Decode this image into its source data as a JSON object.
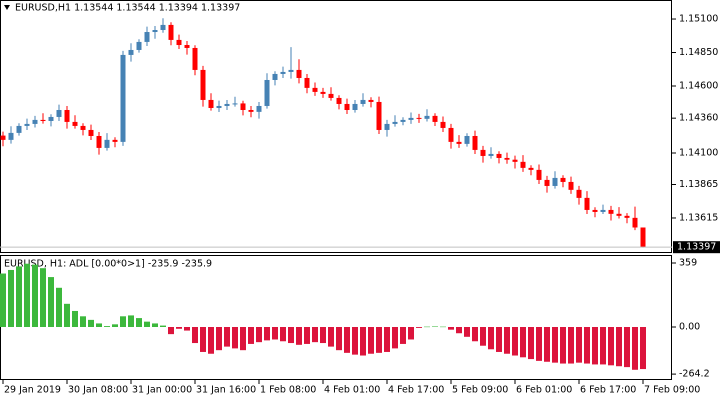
{
  "chart_data": [
    {
      "type": "candlestick",
      "title": "EURUSD,H1  1.13544 1.13544 1.13394 1.13397",
      "open": [
        1.1423,
        1.14198,
        1.1425,
        1.14302,
        1.14317,
        1.14347,
        1.14339,
        1.14369,
        1.14421,
        1.14332,
        1.14302,
        1.14272,
        1.14227,
        1.14138,
        1.14198,
        1.14183,
        1.14832,
        1.14869,
        1.14929,
        1.15003,
        1.15018,
        1.15056,
        1.14944,
        1.14906,
        1.14884,
        1.1472,
        1.14496,
        1.14436,
        1.14451,
        1.14466,
        1.1447,
        1.14421,
        1.14407,
        1.14451,
        1.14645,
        1.1469,
        1.14705,
        1.1472,
        1.1466,
        1.14586,
        1.14556,
        1.14541,
        1.14511,
        1.14466,
        1.14421,
        1.14466,
        1.14496,
        1.14481,
        1.14272,
        1.14317,
        1.14332,
        1.14347,
        1.14362,
        1.14355,
        1.14377,
        1.14332,
        1.14287,
        1.14183,
        1.14168,
        1.14227,
        1.14123,
        1.14078,
        1.14093,
        1.14063,
        1.1405,
        1.14034,
        1.13989,
        1.13974,
        1.13899,
        1.13854,
        1.13914,
        1.13884,
        1.13825,
        1.13765,
        1.13675,
        1.1366,
        1.13675,
        1.13646,
        1.13631,
        1.13616,
        1.13544
      ],
      "high": [
        1.1426,
        1.143,
        1.14322,
        1.14357,
        1.14377,
        1.14397,
        1.14389,
        1.14461,
        1.14451,
        1.14382,
        1.14322,
        1.14312,
        1.14257,
        1.14248,
        1.14218,
        1.14862,
        1.14919,
        1.14949,
        1.15043,
        1.15048,
        1.15106,
        1.15076,
        1.14984,
        1.14936,
        1.14904,
        1.1475,
        1.14546,
        1.14491,
        1.14496,
        1.1452,
        1.1449,
        1.14451,
        1.14481,
        1.14695,
        1.1471,
        1.14745,
        1.1489,
        1.148,
        1.1469,
        1.14626,
        1.14586,
        1.14591,
        1.14531,
        1.14506,
        1.14496,
        1.14546,
        1.14516,
        1.14521,
        1.14347,
        1.14382,
        1.14367,
        1.14402,
        1.14392,
        1.14427,
        1.14397,
        1.14372,
        1.14317,
        1.14233,
        1.14247,
        1.14267,
        1.14153,
        1.14143,
        1.14113,
        1.14103,
        1.1408,
        1.14084,
        1.14009,
        1.14014,
        1.13929,
        1.13964,
        1.13934,
        1.13924,
        1.13855,
        1.13815,
        1.13695,
        1.13715,
        1.13705,
        1.13696,
        1.13651,
        1.137,
        1.13544
      ],
      "low": [
        1.1415,
        1.1417,
        1.1423,
        1.14272,
        1.1429,
        1.14319,
        1.14299,
        1.14339,
        1.14282,
        1.14282,
        1.14232,
        1.14197,
        1.14088,
        1.14118,
        1.14143,
        1.14153,
        1.14782,
        1.14849,
        1.14899,
        1.14953,
        1.14998,
        1.14904,
        1.14876,
        1.14834,
        1.1468,
        1.14446,
        1.14416,
        1.14406,
        1.14421,
        1.14446,
        1.14381,
        1.14367,
        1.14357,
        1.14431,
        1.14605,
        1.1466,
        1.14655,
        1.1462,
        1.14546,
        1.14526,
        1.14511,
        1.14491,
        1.14426,
        1.14391,
        1.14401,
        1.14446,
        1.14441,
        1.14242,
        1.14222,
        1.14297,
        1.14307,
        1.14317,
        1.14325,
        1.14335,
        1.14302,
        1.14257,
        1.14133,
        1.14138,
        1.14148,
        1.14093,
        1.14028,
        1.14058,
        1.14023,
        1.1402,
        1.13984,
        1.13959,
        1.13934,
        1.13869,
        1.13804,
        1.13834,
        1.13844,
        1.13795,
        1.13715,
        1.13645,
        1.1362,
        1.13645,
        1.13596,
        1.13611,
        1.13576,
        1.13524,
        1.13394
      ],
      "close": [
        1.14198,
        1.1425,
        1.14302,
        1.14317,
        1.14347,
        1.14339,
        1.14369,
        1.14421,
        1.14332,
        1.14302,
        1.14272,
        1.14227,
        1.14138,
        1.14198,
        1.14183,
        1.14832,
        1.14869,
        1.14929,
        1.15003,
        1.15018,
        1.15056,
        1.14944,
        1.14906,
        1.14884,
        1.1472,
        1.14496,
        1.14436,
        1.14451,
        1.14466,
        1.1447,
        1.14421,
        1.14407,
        1.14451,
        1.14645,
        1.1469,
        1.14705,
        1.1472,
        1.1466,
        1.14586,
        1.14556,
        1.14541,
        1.14511,
        1.14466,
        1.14421,
        1.14466,
        1.14496,
        1.14481,
        1.14272,
        1.14317,
        1.14332,
        1.14347,
        1.14362,
        1.14355,
        1.14377,
        1.14332,
        1.14287,
        1.14183,
        1.14168,
        1.14227,
        1.14123,
        1.14078,
        1.14093,
        1.14063,
        1.1405,
        1.14034,
        1.13989,
        1.13974,
        1.13899,
        1.13854,
        1.13914,
        1.13884,
        1.13825,
        1.13765,
        1.13675,
        1.1366,
        1.13675,
        1.13646,
        1.13631,
        1.13616,
        1.13544,
        1.13397
      ],
      "up_color": "#4682b4",
      "down_color": "#ff0000",
      "xlim": [
        -0.375,
        83.625
      ],
      "ylim": [
        1.13376,
        1.15242
      ],
      "yticks": [
        {
          "value": 1.151,
          "label": "1.15100"
        },
        {
          "value": 1.1485,
          "label": "1.14850"
        },
        {
          "value": 1.146,
          "label": "1.14600"
        },
        {
          "value": 1.1436,
          "label": "1.14360"
        },
        {
          "value": 1.141,
          "label": "1.14100"
        },
        {
          "value": 1.13865,
          "label": "1.13865"
        },
        {
          "value": 1.13615,
          "label": "1.13615"
        }
      ],
      "price_marker": {
        "value": 1.13397,
        "label": "1.13397"
      }
    },
    {
      "type": "bar",
      "title": "EURUSD, H1: ADL [0.00*0>1] -235.9 -235.9",
      "values": [
        300,
        320,
        340,
        355,
        350,
        330,
        280,
        220,
        130,
        90,
        60,
        40,
        20,
        5,
        15,
        60,
        65,
        50,
        30,
        20,
        8,
        -40,
        -10,
        -20,
        -90,
        -140,
        -150,
        -130,
        -110,
        -120,
        -130,
        -95,
        -85,
        -75,
        -70,
        -80,
        -90,
        -100,
        -95,
        -85,
        -90,
        -110,
        -130,
        -145,
        -155,
        -160,
        -150,
        -145,
        -140,
        -120,
        -95,
        -70,
        -5,
        2,
        3,
        2,
        -15,
        -35,
        -55,
        -80,
        -105,
        -125,
        -140,
        -150,
        -160,
        -170,
        -180,
        -190,
        -195,
        -200,
        -205,
        -205,
        -200,
        -205,
        -210,
        -210,
        -215,
        -220,
        -225,
        -240,
        -235.9
      ],
      "positive_color": "#3cb83c",
      "negative_color": "#dc143c",
      "xlim": [
        -0.375,
        83.625
      ],
      "ylim": [
        -297.3,
        398.3
      ],
      "yticks": [
        359,
        {
          "value": 0,
          "label": "0.00"
        },
        -264.2
      ],
      "xticks": [
        {
          "value": 0,
          "label": "29 Jan 2019"
        },
        {
          "value": 8,
          "label": "30 Jan 08:00"
        },
        {
          "value": 16,
          "label": "31 Jan 00:00"
        },
        {
          "value": 24,
          "label": "31 Jan 16:00"
        },
        {
          "value": 32,
          "label": "1 Feb 08:00"
        },
        {
          "value": 40,
          "label": "4 Feb 01:00"
        },
        {
          "value": 48,
          "label": "4 Feb 17:00"
        },
        {
          "value": 56,
          "label": "5 Feb 09:00"
        },
        {
          "value": 64,
          "label": "6 Feb 01:00"
        },
        {
          "value": 72,
          "label": "6 Feb 17:00"
        },
        {
          "value": 80,
          "label": "7 Feb 09:00"
        }
      ]
    }
  ]
}
